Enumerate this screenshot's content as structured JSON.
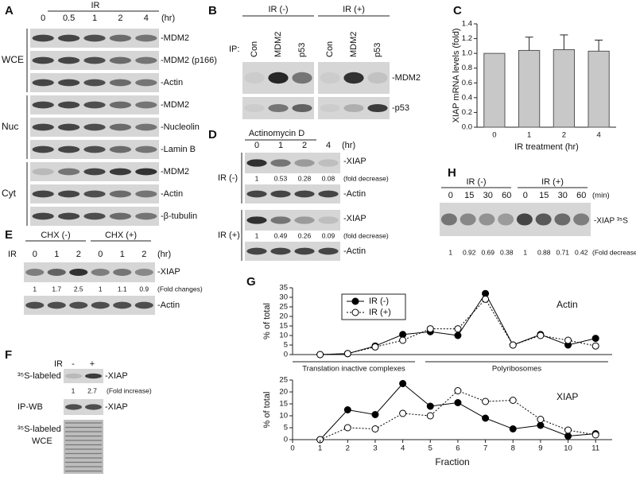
{
  "figure": {
    "A": {
      "label": "A",
      "header": "IR",
      "timepoints": [
        "0",
        "0.5",
        "1",
        "2",
        "4"
      ],
      "unit": "(hr)",
      "groups": [
        {
          "name": "WCE",
          "rows": [
            "-MDM2",
            "-MDM2 (p166)",
            "-Actin"
          ]
        },
        {
          "name": "Nuc",
          "rows": [
            "-MDM2",
            "-Nucleolin",
            "-Lamin B"
          ]
        },
        {
          "name": "Cyt",
          "rows": [
            "-MDM2",
            "-Actin",
            "-β-tubulin"
          ]
        }
      ]
    },
    "B": {
      "label": "B",
      "groups": [
        "IR (-)",
        "IR (+)"
      ],
      "ip_label": "IP:",
      "lanes": [
        "Con",
        "MDM2",
        "p53",
        "Con",
        "MDM2",
        "p53"
      ],
      "rows": [
        "-MDM2",
        "-p53"
      ]
    },
    "D": {
      "label": "D",
      "header": "Actinomycin D",
      "timepoints": [
        "0",
        "1",
        "2",
        "4"
      ],
      "unit": "(hr)",
      "fold_unit": "(fold decrease)",
      "groups": [
        {
          "name": "IR (-)",
          "rows": [
            "-XIAP",
            "-Actin"
          ],
          "fold": [
            "1",
            "0.53",
            "0.28",
            "0.08"
          ]
        },
        {
          "name": "IR (+)",
          "rows": [
            "-XIAP",
            "-Actin"
          ],
          "fold": [
            "1",
            "0.49",
            "0.26",
            "0.09"
          ]
        }
      ]
    },
    "E": {
      "label": "E",
      "ir": "IR",
      "groups": [
        "CHX (-)",
        "CHX (+)"
      ],
      "timepoints": [
        "0",
        "1",
        "2",
        "0",
        "1",
        "2"
      ],
      "unit": "(hr)",
      "rows": [
        "-XIAP",
        "-Actin"
      ],
      "fold": [
        "1",
        "1.7",
        "2.5",
        "1",
        "1.1",
        "0.9"
      ],
      "fold_unit": "(Fold changes)"
    },
    "F": {
      "label": "F",
      "ir": "IR",
      "lanes": [
        "-",
        "+"
      ],
      "fold": [
        "1",
        "2.7"
      ],
      "fold_unit": "(Fold increase)",
      "rows": [
        {
          "label": [
            "³⁵S-labeled"
          ],
          "band": "-XIAP"
        },
        {
          "label": [
            "IP-WB"
          ],
          "band": "-XIAP"
        },
        {
          "label": [
            "³⁵S-labeled",
            "WCE"
          ],
          "band": null
        }
      ]
    },
    "H": {
      "label": "H",
      "groups": [
        "IR (-)",
        "IR (+)"
      ],
      "timepoints": [
        "0",
        "15",
        "30",
        "60",
        "0",
        "15",
        "30",
        "60"
      ],
      "unit": "(min)",
      "band": "-XIAP ³⁵S",
      "fold": [
        "1",
        "0.92",
        "0.69",
        "0.38",
        "1",
        "0.88",
        "0.71",
        "0.42"
      ],
      "fold_unit": "(Fold decrease)"
    }
  },
  "chart_data": [
    {
      "type": "bar",
      "panel": "C",
      "ylabel": "XIAP mRNA levels (fold)",
      "xlabel": "IR treatment (hr)",
      "categories": [
        "0",
        "1",
        "2",
        "4"
      ],
      "values": [
        1.0,
        1.04,
        1.05,
        1.03
      ],
      "errors": [
        null,
        0.18,
        0.2,
        0.15
      ],
      "color": "#c8c8c8",
      "ylim": [
        0,
        1.4
      ],
      "yticks": [
        {
          "value": 0,
          "label": "0.0"
        },
        {
          "value": 0.2,
          "label": "0.2"
        },
        {
          "value": 0.4,
          "label": "0.4"
        },
        {
          "value": 0.6,
          "label": "0.6"
        },
        {
          "value": 0.8,
          "label": "0.8"
        },
        {
          "value": 1.0,
          "label": "1.0"
        },
        {
          "value": 1.2,
          "label": "1.2"
        },
        {
          "value": 1.4,
          "label": "1.4"
        }
      ]
    },
    {
      "type": "line",
      "panel": "G",
      "ylabel": "% of total",
      "xlabel": "Fraction",
      "x": [
        1,
        2,
        3,
        4,
        5,
        6,
        7,
        8,
        9,
        10,
        11
      ],
      "xlim": [
        0,
        11.6
      ],
      "xticks": [
        0,
        1,
        2,
        3,
        4,
        5,
        6,
        7,
        8,
        9,
        10,
        11
      ],
      "series": [
        {
          "name": "IR (-)",
          "color": "#000000",
          "fill": "#000000",
          "dotted": false
        },
        {
          "name": "IR (+)",
          "color": "#000000",
          "fill": "#ffffff",
          "dotted": true
        }
      ],
      "annotations": [
        "Translation inactive complexes",
        "Polyribosomes"
      ],
      "subplots": [
        {
          "title": "Actin",
          "ylim": [
            0,
            35
          ],
          "yticks": [
            0,
            5,
            10,
            15,
            20,
            25,
            30,
            35
          ],
          "values": [
            [
              0,
              0.5,
              4.5,
              10.5,
              12,
              10,
              32,
              5,
              10.5,
              5,
              8.5
            ],
            [
              0,
              0.5,
              4,
              7.5,
              13.5,
              13.5,
              29,
              5,
              10,
              7.5,
              4.5
            ]
          ]
        },
        {
          "title": "XIAP",
          "ylim": [
            0,
            25
          ],
          "yticks": [
            0,
            5,
            10,
            15,
            20,
            25
          ],
          "values": [
            [
              0,
              12.5,
              10.5,
              23.5,
              14,
              15.5,
              9,
              4.5,
              6,
              1.5,
              2.5
            ],
            [
              0,
              5,
              4.5,
              11,
              10,
              20.5,
              16,
              16.5,
              8.5,
              4,
              2
            ]
          ]
        }
      ]
    }
  ]
}
